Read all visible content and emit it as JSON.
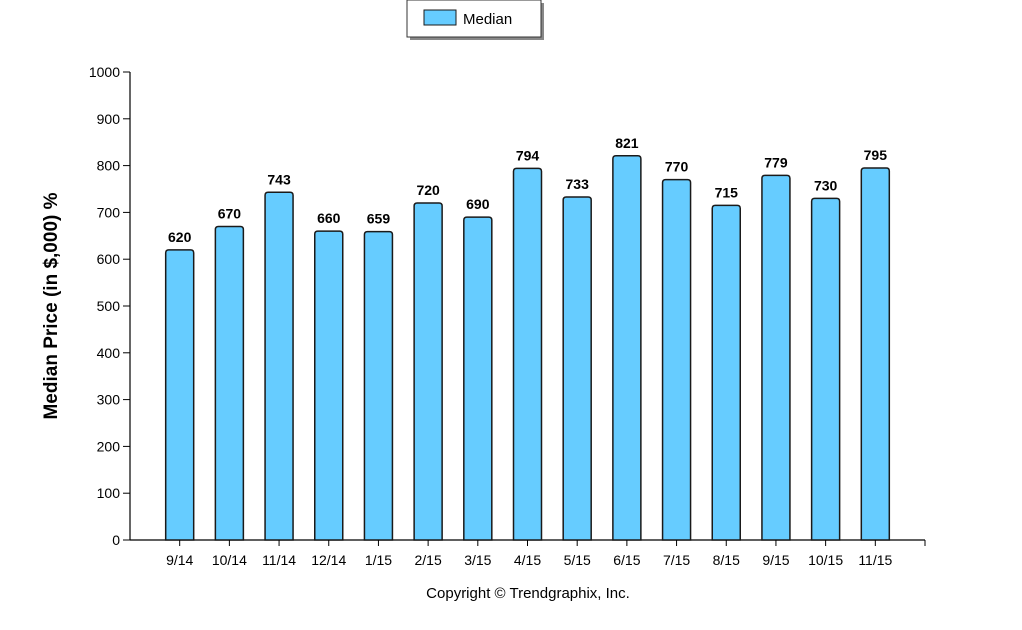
{
  "chart_data": {
    "type": "bar",
    "categories": [
      "9/14",
      "10/14",
      "11/14",
      "12/14",
      "1/15",
      "2/15",
      "3/15",
      "4/15",
      "5/15",
      "6/15",
      "7/15",
      "8/15",
      "9/15",
      "10/15",
      "11/15"
    ],
    "series": [
      {
        "name": "Median",
        "values": [
          620,
          670,
          743,
          660,
          659,
          720,
          690,
          794,
          733,
          821,
          770,
          715,
          779,
          730,
          795
        ]
      }
    ],
    "ylabel": "Median Price (in $,000) %",
    "ylim": [
      0,
      1000
    ],
    "yticks": [
      0,
      100,
      200,
      300,
      400,
      500,
      600,
      700,
      800,
      900,
      1000
    ],
    "legend_position": "top-center",
    "grid": false,
    "bar_color": "#66ccff",
    "bar_stroke": "#1a1a1a"
  },
  "footer": {
    "copyright": "Copyright © Trendgraphix, Inc."
  }
}
